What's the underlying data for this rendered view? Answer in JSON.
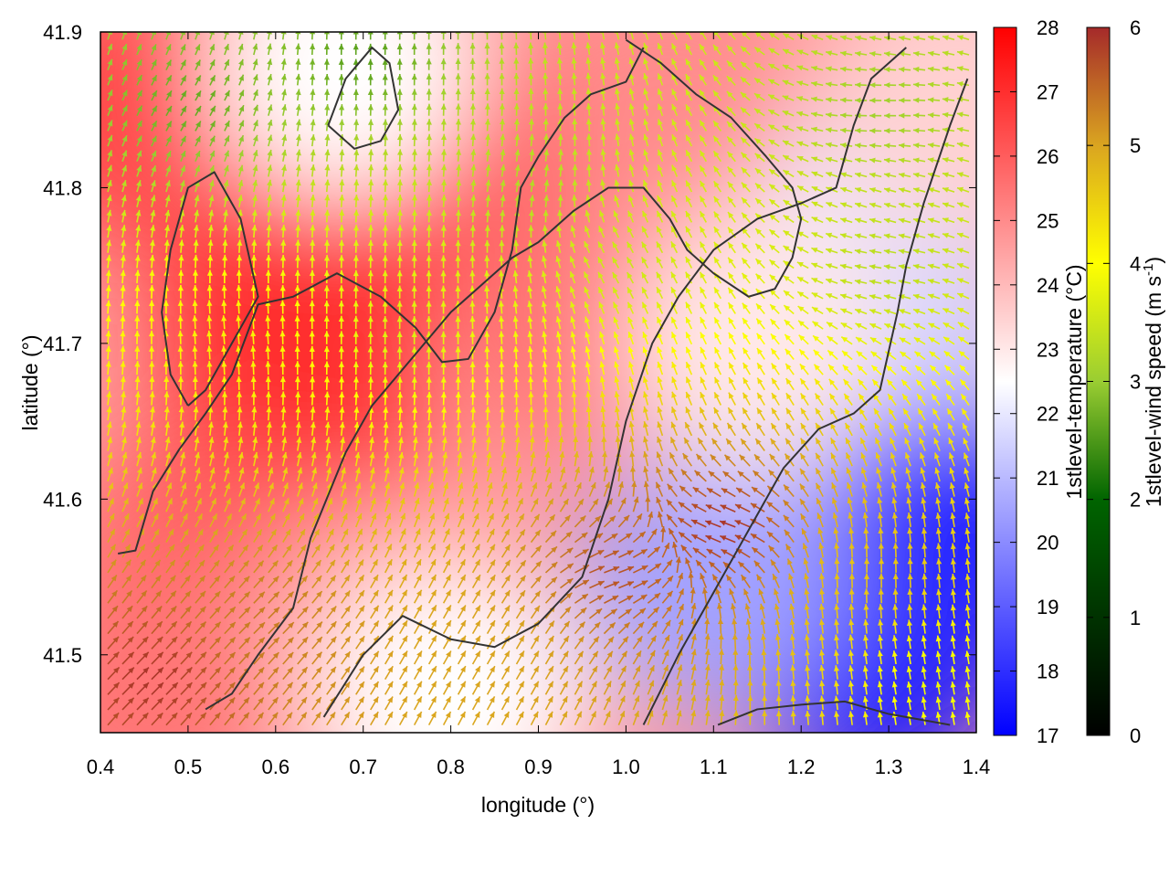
{
  "chart_data": {
    "type": "heatmap",
    "xlabel": "longitude (°)",
    "ylabel": "latitude (°)",
    "xlim": [
      0.4,
      1.4
    ],
    "ylim": [
      41.45,
      41.9
    ],
    "xticks": [
      "0.4",
      "0.5",
      "0.6",
      "0.7",
      "0.8",
      "0.9",
      "1.0",
      "1.1",
      "1.2",
      "1.3",
      "1.4"
    ],
    "yticks": [
      "41.5",
      "41.6",
      "41.7",
      "41.8",
      "41.9"
    ],
    "grid": false,
    "temperature_colorbar": {
      "label": "1stlevel-temperature (°C)",
      "range": [
        17,
        28
      ],
      "ticks": [
        "17",
        "18",
        "19",
        "20",
        "21",
        "22",
        "23",
        "24",
        "25",
        "26",
        "27",
        "28"
      ],
      "colors": [
        "#0000ff",
        "#ffffff",
        "#ff0000"
      ]
    },
    "wind_colorbar": {
      "label_main": "1stlevel-wind speed (m s",
      "label_sup": "-1",
      "label_end": ")",
      "range": [
        0,
        6
      ],
      "ticks": [
        "0",
        "1",
        "2",
        "3",
        "4",
        "5",
        "6"
      ],
      "colors": [
        "#000000",
        "#006400",
        "#9acd32",
        "#ffff00",
        "#daa520",
        "#a52a2a"
      ]
    },
    "temperature_field": [
      {
        "lon": 0.45,
        "lat": 41.85,
        "value": 26.5
      },
      {
        "lon": 0.62,
        "lat": 41.72,
        "value": 27.0
      },
      {
        "lon": 0.62,
        "lat": 41.62,
        "value": 27.0
      },
      {
        "lon": 0.8,
        "lat": 41.82,
        "value": 27.0
      },
      {
        "lon": 0.52,
        "lat": 41.55,
        "value": 26.0
      },
      {
        "lon": 0.45,
        "lat": 41.48,
        "value": 25.5
      },
      {
        "lon": 0.72,
        "lat": 41.52,
        "value": 24.5
      },
      {
        "lon": 0.95,
        "lat": 41.72,
        "value": 25.5
      },
      {
        "lon": 1.05,
        "lat": 41.85,
        "value": 25.0
      },
      {
        "lon": 0.68,
        "lat": 41.88,
        "value": 22.5
      },
      {
        "lon": 1.3,
        "lat": 41.78,
        "value": 22.0
      },
      {
        "lon": 1.32,
        "lat": 41.68,
        "value": 21.5
      },
      {
        "lon": 1.28,
        "lat": 41.5,
        "value": 17.5
      },
      {
        "lon": 1.37,
        "lat": 41.57,
        "value": 17.8
      },
      {
        "lon": 1.1,
        "lat": 41.55,
        "value": 20.5
      },
      {
        "lon": 0.8,
        "lat": 41.47,
        "value": 22.5
      },
      {
        "lon": 1.15,
        "lat": 41.7,
        "value": 23.0
      },
      {
        "lon": 1.38,
        "lat": 41.86,
        "value": 23.5
      }
    ],
    "wind_field": [
      {
        "lon": 0.45,
        "lat": 41.48,
        "speed": 5.9,
        "dir_deg": 45
      },
      {
        "lon": 0.58,
        "lat": 41.52,
        "speed": 5.2,
        "dir_deg": 45
      },
      {
        "lon": 0.55,
        "lat": 41.7,
        "speed": 3.8,
        "dir_deg": 95
      },
      {
        "lon": 0.75,
        "lat": 41.7,
        "speed": 3.2,
        "dir_deg": 90
      },
      {
        "lon": 0.88,
        "lat": 41.8,
        "speed": 2.7,
        "dir_deg": 80
      },
      {
        "lon": 0.5,
        "lat": 41.85,
        "speed": 2.0,
        "dir_deg": 60
      },
      {
        "lon": 1.0,
        "lat": 41.75,
        "speed": 3.0,
        "dir_deg": 120
      },
      {
        "lon": 1.12,
        "lat": 41.58,
        "speed": 5.9,
        "dir_deg": 160
      },
      {
        "lon": 0.98,
        "lat": 41.55,
        "speed": 5.6,
        "dir_deg": 20
      },
      {
        "lon": 1.28,
        "lat": 41.55,
        "speed": 4.4,
        "dir_deg": 90
      },
      {
        "lon": 1.3,
        "lat": 41.75,
        "speed": 2.8,
        "dir_deg": 170
      },
      {
        "lon": 1.3,
        "lat": 41.85,
        "speed": 2.5,
        "dir_deg": 180
      },
      {
        "lon": 1.35,
        "lat": 41.48,
        "speed": 3.4,
        "dir_deg": 100
      },
      {
        "lon": 0.7,
        "lat": 41.88,
        "speed": 1.9,
        "dir_deg": 90
      },
      {
        "lon": 0.86,
        "lat": 41.5,
        "speed": 4.8,
        "dir_deg": 60
      }
    ],
    "contours": [
      [
        [
          0.42,
          41.565
        ],
        [
          0.44,
          41.567
        ],
        [
          0.46,
          41.605
        ],
        [
          0.49,
          41.632
        ],
        [
          0.52,
          41.655
        ],
        [
          0.55,
          41.68
        ],
        [
          0.58,
          41.725
        ],
        [
          0.62,
          41.73
        ],
        [
          0.67,
          41.745
        ],
        [
          0.72,
          41.73
        ],
        [
          0.76,
          41.71
        ],
        [
          0.79,
          41.688
        ],
        [
          0.82,
          41.69
        ],
        [
          0.85,
          41.72
        ],
        [
          0.87,
          41.76
        ],
        [
          0.88,
          41.8
        ],
        [
          0.9,
          41.82
        ],
        [
          0.93,
          41.845
        ],
        [
          0.96,
          41.86
        ],
        [
          1.0,
          41.868
        ],
        [
          1.02,
          41.89
        ]
      ],
      [
        [
          0.52,
          41.465
        ],
        [
          0.55,
          41.475
        ],
        [
          0.58,
          41.5
        ],
        [
          0.62,
          41.53
        ],
        [
          0.64,
          41.575
        ],
        [
          0.68,
          41.63
        ],
        [
          0.71,
          41.66
        ],
        [
          0.74,
          41.68
        ],
        [
          0.77,
          41.7
        ],
        [
          0.8,
          41.72
        ],
        [
          0.84,
          41.74
        ],
        [
          0.87,
          41.755
        ],
        [
          0.9,
          41.765
        ],
        [
          0.94,
          41.785
        ],
        [
          0.98,
          41.8
        ],
        [
          1.02,
          41.8
        ],
        [
          1.05,
          41.78
        ],
        [
          1.07,
          41.76
        ],
        [
          1.1,
          41.745
        ],
        [
          1.14,
          41.73
        ],
        [
          1.17,
          41.735
        ],
        [
          1.19,
          41.755
        ],
        [
          1.2,
          41.78
        ],
        [
          1.19,
          41.8
        ],
        [
          1.16,
          41.82
        ],
        [
          1.12,
          41.845
        ],
        [
          1.08,
          41.86
        ],
        [
          1.04,
          41.88
        ],
        [
          1.0,
          41.895
        ]
      ],
      [
        [
          0.655,
          41.46
        ],
        [
          0.7,
          41.5
        ],
        [
          0.745,
          41.525
        ],
        [
          0.8,
          41.51
        ],
        [
          0.85,
          41.505
        ],
        [
          0.9,
          41.52
        ],
        [
          0.95,
          41.55
        ],
        [
          0.98,
          41.6
        ],
        [
          1.0,
          41.65
        ],
        [
          1.03,
          41.7
        ],
        [
          1.06,
          41.73
        ],
        [
          1.1,
          41.76
        ],
        [
          1.15,
          41.78
        ],
        [
          1.2,
          41.79
        ],
        [
          1.24,
          41.8
        ],
        [
          1.26,
          41.84
        ],
        [
          1.28,
          41.87
        ],
        [
          1.32,
          41.89
        ]
      ],
      [
        [
          1.02,
          41.455
        ],
        [
          1.06,
          41.5
        ],
        [
          1.1,
          41.54
        ],
        [
          1.14,
          41.58
        ],
        [
          1.18,
          41.62
        ],
        [
          1.22,
          41.645
        ],
        [
          1.26,
          41.655
        ],
        [
          1.29,
          41.67
        ],
        [
          1.31,
          41.72
        ],
        [
          1.32,
          41.75
        ],
        [
          1.34,
          41.79
        ],
        [
          1.37,
          41.84
        ],
        [
          1.39,
          41.87
        ]
      ],
      [
        [
          1.105,
          41.455
        ],
        [
          1.15,
          41.465
        ],
        [
          1.2,
          41.468
        ],
        [
          1.25,
          41.47
        ],
        [
          1.3,
          41.462
        ],
        [
          1.34,
          41.458
        ],
        [
          1.37,
          41.455
        ]
      ],
      [
        [
          0.5,
          41.66
        ],
        [
          0.52,
          41.67
        ],
        [
          0.55,
          41.7
        ],
        [
          0.58,
          41.73
        ],
        [
          0.56,
          41.78
        ],
        [
          0.53,
          41.81
        ],
        [
          0.5,
          41.8
        ],
        [
          0.48,
          41.76
        ],
        [
          0.47,
          41.72
        ],
        [
          0.48,
          41.68
        ],
        [
          0.5,
          41.66
        ]
      ],
      [
        [
          0.66,
          41.84
        ],
        [
          0.68,
          41.87
        ],
        [
          0.71,
          41.89
        ],
        [
          0.73,
          41.88
        ],
        [
          0.74,
          41.85
        ],
        [
          0.72,
          41.83
        ],
        [
          0.69,
          41.825
        ],
        [
          0.66,
          41.84
        ]
      ]
    ]
  }
}
